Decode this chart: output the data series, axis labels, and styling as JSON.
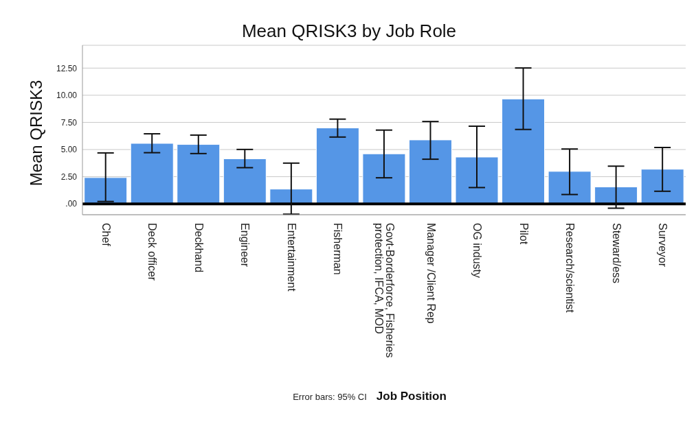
{
  "chart_data": {
    "type": "bar",
    "title": "Mean QRISK3 by Job Role",
    "xlabel": "Job Position",
    "ylabel": "Mean QRISK3",
    "categories": [
      "Chef",
      "Deck officer",
      "Deckhand",
      "Engineer",
      "Entertainment",
      "Fisherman",
      "Govt-Borderforce, Fisheries protection, IFCA, MOD",
      "Manager /Client Rep",
      "OG industy",
      "Pilot",
      "Research/scientist",
      "Steward/ess",
      "Surveyor"
    ],
    "values": [
      2.42,
      5.57,
      5.47,
      4.15,
      1.36,
      6.99,
      4.61,
      5.89,
      4.31,
      9.66,
      2.99,
      1.56,
      3.19
    ],
    "errors": [
      [
        0.22,
        4.69
      ],
      [
        4.71,
        6.45
      ],
      [
        4.63,
        6.33
      ],
      [
        3.33,
        5.01
      ],
      [
        -0.95,
        3.75
      ],
      [
        6.15,
        7.8
      ],
      [
        2.4,
        6.79
      ],
      [
        4.11,
        7.58
      ],
      [
        1.5,
        7.15
      ],
      [
        6.85,
        12.51
      ],
      [
        0.86,
        5.05
      ],
      [
        -0.4,
        3.47
      ],
      [
        1.16,
        5.19
      ]
    ],
    "color": "#5596e6",
    "ylim": [
      -1,
      14.6
    ],
    "yticks": [
      {
        "value": 0,
        "label": ".00"
      },
      {
        "value": 2.5,
        "label": "2.50"
      },
      {
        "value": 5,
        "label": "5.00"
      },
      {
        "value": 7.5,
        "label": "7.50"
      },
      {
        "value": 10,
        "label": "10.00"
      },
      {
        "value": 12.5,
        "label": "12.50"
      }
    ],
    "grid": "y",
    "ref_lines": [
      {
        "axis": "y",
        "value": 0,
        "color": "#000000"
      }
    ],
    "annotations": [
      "Error bars: 95% CI"
    ]
  }
}
